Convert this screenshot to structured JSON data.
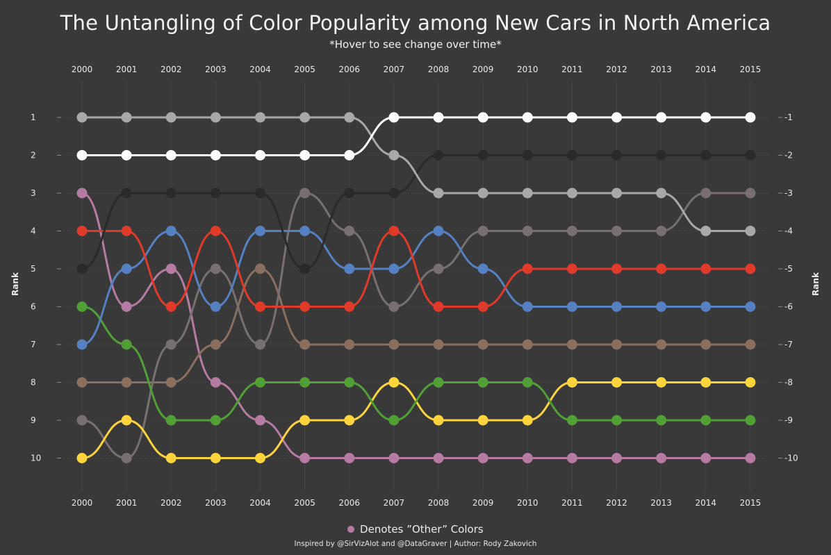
{
  "title": "The Untangling of Color Popularity among New Cars in North America",
  "subtitle": "*Hover to see change over time*",
  "legend": {
    "label": "Denotes ”Other” Colors",
    "color": "#b67ba3"
  },
  "credit": "Inspired by @SirVizAlot and @DataGraver | Author: Rody Zakovich",
  "chart_data": {
    "type": "line",
    "x": [
      "2000",
      "2001",
      "2002",
      "2003",
      "2004",
      "2005",
      "2006",
      "2007",
      "2008",
      "2009",
      "2010",
      "2011",
      "2012",
      "2013",
      "2014",
      "2015"
    ],
    "ylabel_left": "Rank",
    "ylabel_right": "Rank",
    "y_ticks_left": [
      "1",
      "2",
      "3",
      "4",
      "5",
      "6",
      "7",
      "8",
      "9",
      "10"
    ],
    "y_ticks_right": [
      "-1",
      "-2",
      "-3",
      "-4",
      "-5",
      "-6",
      "-7",
      "-8",
      "-9",
      "-10"
    ],
    "y_range": [
      1,
      10
    ],
    "y_inverted": true,
    "grid": true,
    "legend_position": "bottom-center",
    "series": [
      {
        "color": "#b67ba3",
        "values": [
          3,
          6,
          5,
          8,
          9,
          10,
          10,
          10,
          10,
          10,
          10,
          10,
          10,
          10,
          10,
          10
        ]
      },
      {
        "color": "#8a6f5e",
        "values": [
          8,
          8,
          8,
          7,
          5,
          7,
          7,
          7,
          7,
          7,
          7,
          7,
          7,
          7,
          7,
          7
        ]
      },
      {
        "color": "#787070",
        "values": [
          9,
          10,
          7,
          5,
          7,
          3,
          4,
          6,
          5,
          4,
          4,
          4,
          4,
          4,
          3,
          3
        ]
      },
      {
        "color": "#fdd43c",
        "values": [
          10,
          9,
          10,
          10,
          10,
          9,
          9,
          8,
          9,
          9,
          9,
          8,
          8,
          8,
          8,
          8
        ]
      },
      {
        "color": "#50a036",
        "values": [
          6,
          7,
          9,
          9,
          8,
          8,
          8,
          9,
          8,
          8,
          8,
          9,
          9,
          9,
          9,
          9
        ]
      },
      {
        "color": "#5581c3",
        "values": [
          7,
          5,
          4,
          6,
          4,
          4,
          5,
          5,
          4,
          5,
          6,
          6,
          6,
          6,
          6,
          6
        ]
      },
      {
        "color": "#e03a2a",
        "values": [
          4,
          4,
          6,
          4,
          6,
          6,
          6,
          4,
          6,
          6,
          5,
          5,
          5,
          5,
          5,
          5
        ]
      },
      {
        "color": "#2a2a2a",
        "values": [
          5,
          3,
          3,
          3,
          3,
          5,
          3,
          3,
          2,
          2,
          2,
          2,
          2,
          2,
          2,
          2
        ]
      },
      {
        "color": "#a7a9a8",
        "values": [
          1,
          1,
          1,
          1,
          1,
          1,
          1,
          2,
          3,
          3,
          3,
          3,
          3,
          3,
          4,
          4
        ]
      },
      {
        "color": "#ffffff",
        "values": [
          2,
          2,
          2,
          2,
          2,
          2,
          2,
          1,
          1,
          1,
          1,
          1,
          1,
          1,
          1,
          1
        ]
      }
    ]
  }
}
